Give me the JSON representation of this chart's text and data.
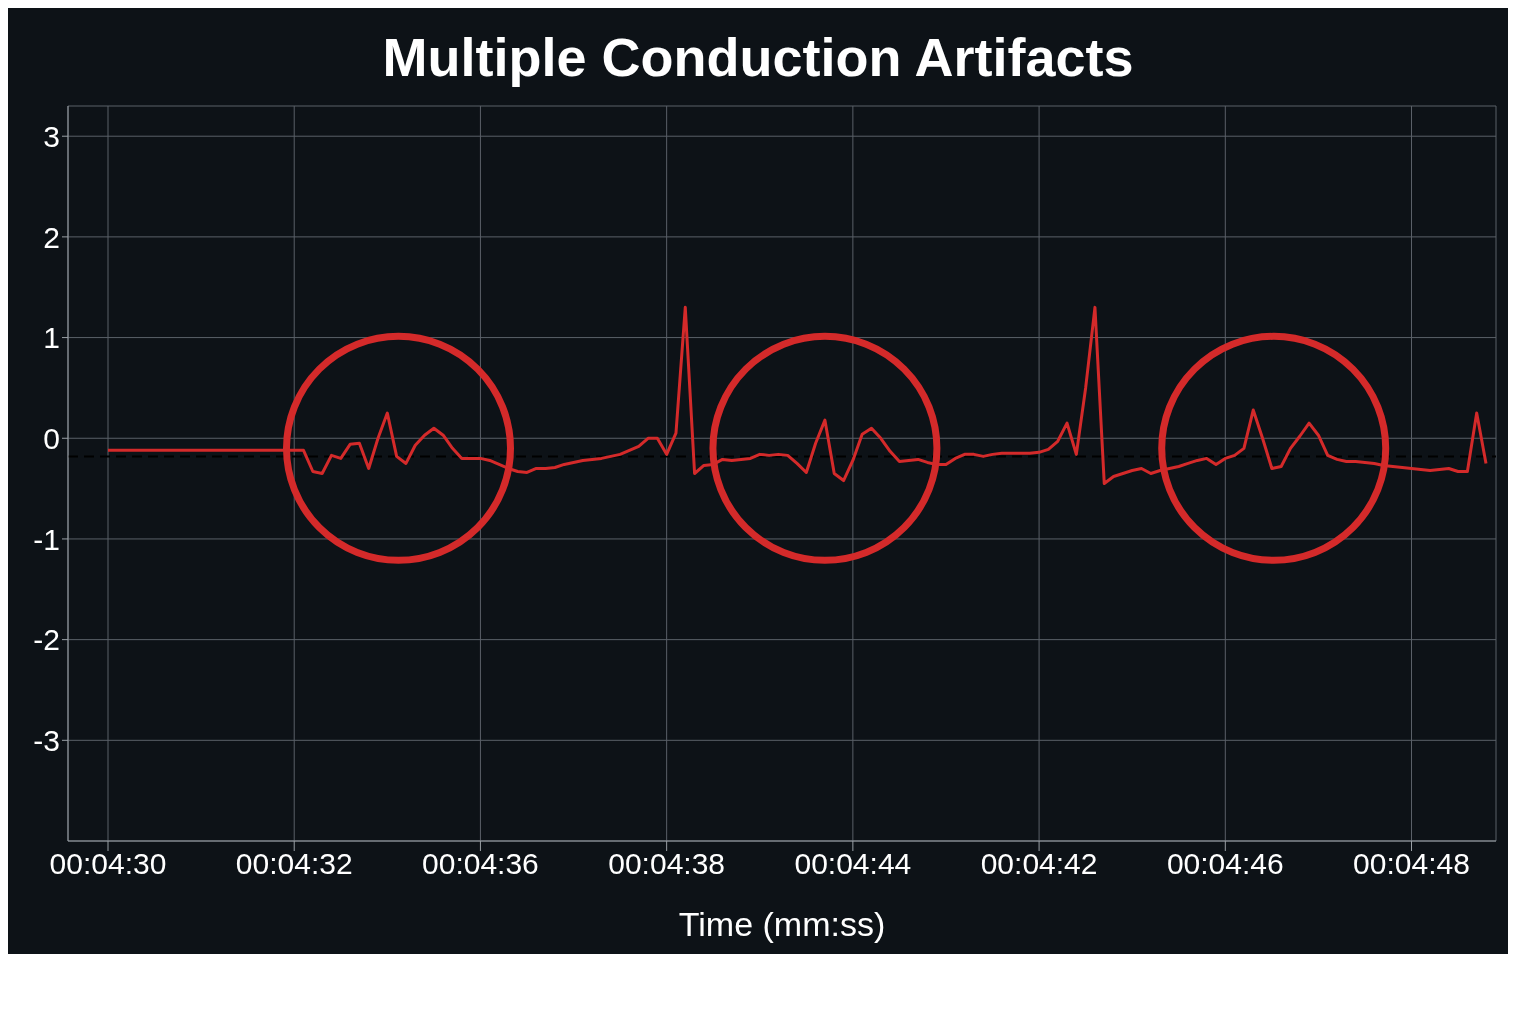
{
  "chart_data": {
    "type": "line",
    "title": "Multiple Conduction Artifacts",
    "xlabel": "Time (mm:ss)",
    "categories": [
      "00:04:30",
      null,
      null,
      null,
      null,
      null,
      null,
      null,
      null,
      null,
      null,
      null,
      null,
      null,
      null,
      null,
      null,
      null,
      null,
      null,
      "00:04:32",
      null,
      null,
      null,
      null,
      null,
      null,
      null,
      null,
      null,
      null,
      null,
      null,
      null,
      null,
      null,
      null,
      null,
      null,
      null,
      "00:04:36",
      null,
      null,
      null,
      null,
      null,
      null,
      null,
      null,
      null,
      null,
      null,
      null,
      null,
      null,
      null,
      null,
      null,
      null,
      null,
      "00:04:38",
      null,
      null,
      null,
      null,
      null,
      null,
      null,
      null,
      null,
      null,
      null,
      null,
      null,
      null,
      null,
      null,
      null,
      null,
      null,
      "00:04:44",
      null,
      null,
      null,
      null,
      null,
      null,
      null,
      null,
      null,
      null,
      null,
      null,
      null,
      null,
      null,
      null,
      null,
      null,
      null,
      "00:04:42",
      null,
      null,
      null,
      null,
      null,
      null,
      null,
      null,
      null,
      null,
      null,
      null,
      null,
      null,
      null,
      null,
      null,
      null,
      null,
      "00:04:46",
      null,
      null,
      null,
      null,
      null,
      null,
      null,
      null,
      null,
      null,
      null,
      null,
      null,
      null,
      null,
      null,
      null,
      null,
      null,
      "00:04:48",
      null,
      null,
      null,
      null,
      null,
      null,
      null,
      null
    ],
    "ylim": [
      -4,
      3.3
    ],
    "yticks": [
      -3,
      -2,
      -1,
      0,
      1,
      2,
      3
    ],
    "grid": true,
    "line_style": "solid",
    "ref_lines": [
      {
        "axis": "y",
        "value": -0.18,
        "color": "#000000",
        "line_style": "dashed"
      }
    ],
    "series": [
      {
        "color": "#d42a2a",
        "values": [
          -0.12,
          -0.12,
          -0.12,
          -0.12,
          -0.12,
          -0.12,
          -0.12,
          -0.12,
          -0.12,
          -0.12,
          -0.12,
          -0.12,
          -0.12,
          -0.12,
          -0.12,
          -0.12,
          -0.12,
          -0.12,
          -0.12,
          -0.12,
          -0.12,
          -0.12,
          -0.33,
          -0.35,
          -0.17,
          -0.2,
          -0.06,
          -0.05,
          -0.3,
          0,
          0.25,
          -0.18,
          -0.25,
          -0.07,
          0.03,
          0.1,
          0.03,
          -0.1,
          -0.2,
          -0.2,
          -0.2,
          -0.22,
          -0.26,
          -0.3,
          -0.33,
          -0.34,
          -0.3,
          -0.3,
          -0.29,
          -0.26,
          -0.24,
          -0.22,
          -0.21,
          -0.2,
          -0.18,
          -0.16,
          -0.12,
          -0.08,
          0,
          0,
          -0.16,
          0.05,
          1.3,
          -0.35,
          -0.27,
          -0.26,
          -0.21,
          -0.22,
          -0.21,
          -0.2,
          -0.16,
          -0.17,
          -0.16,
          -0.17,
          -0.25,
          -0.34,
          -0.05,
          0.18,
          -0.35,
          -0.42,
          -0.22,
          0.04,
          0.1,
          0,
          -0.13,
          -0.23,
          -0.22,
          -0.21,
          -0.24,
          -0.26,
          -0.26,
          -0.2,
          -0.16,
          -0.16,
          -0.18,
          -0.16,
          -0.15,
          -0.15,
          -0.15,
          -0.15,
          -0.14,
          -0.11,
          -0.03,
          0.15,
          -0.16,
          0.5,
          1.3,
          -0.45,
          -0.38,
          -0.35,
          -0.32,
          -0.3,
          -0.35,
          -0.32,
          -0.3,
          -0.28,
          -0.25,
          -0.22,
          -0.2,
          -0.26,
          -0.2,
          -0.17,
          -0.1,
          0.28,
          0,
          -0.3,
          -0.28,
          -0.1,
          0.02,
          0.15,
          0.03,
          -0.17,
          -0.21,
          -0.23,
          -0.23,
          -0.24,
          -0.25,
          -0.27,
          -0.28,
          -0.29,
          -0.3,
          -0.31,
          -0.32,
          -0.31,
          -0.3,
          -0.33,
          -0.33,
          0.25,
          -0.25
        ]
      }
    ]
  }
}
